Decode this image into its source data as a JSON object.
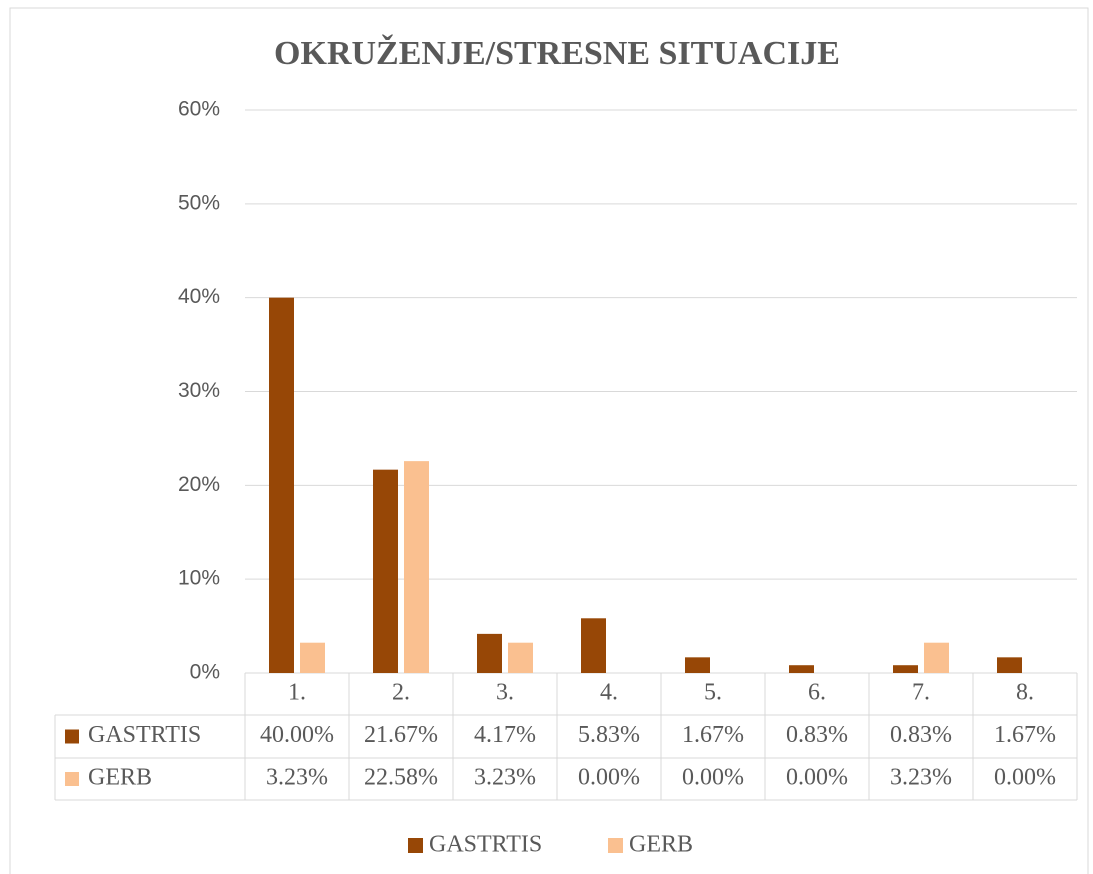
{
  "chart_data": {
    "type": "bar",
    "title": "OKRUŽENJE/STRESNE SITUACIJE",
    "categories": [
      "1.",
      "2.",
      "3.",
      "4.",
      "5.",
      "6.",
      "7.",
      "8."
    ],
    "series": [
      {
        "name": "GASTRTIS",
        "color": "#974706",
        "values": [
          40,
          21.67,
          4.17,
          5.83,
          1.67,
          0.83,
          0.83,
          1.67
        ],
        "value_labels": [
          "40.00%",
          "21.67%",
          "4.17%",
          "5.83%",
          "1.67%",
          "0.83%",
          "0.83%",
          "1.67%"
        ]
      },
      {
        "name": "GERB",
        "color": "#fac090",
        "values": [
          3.23,
          22.58,
          3.23,
          0,
          0,
          0,
          3.23,
          0
        ],
        "value_labels": [
          "3.23%",
          "22.58%",
          "3.23%",
          "0.00%",
          "0.00%",
          "0.00%",
          "3.23%",
          "0.00%"
        ]
      }
    ],
    "ylim": [
      0,
      60
    ],
    "yticks": [
      {
        "value": 0,
        "label": "0%"
      },
      {
        "value": 10,
        "label": "10%"
      },
      {
        "value": 20,
        "label": "20%"
      },
      {
        "value": 30,
        "label": "30%"
      },
      {
        "value": 40,
        "label": "40%"
      },
      {
        "value": 50,
        "label": "50%"
      },
      {
        "value": 60,
        "label": "60%"
      }
    ],
    "grid": true,
    "legend": "bottom"
  }
}
